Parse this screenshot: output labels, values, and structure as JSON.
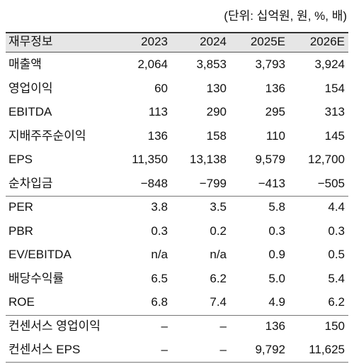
{
  "unit_note": "(단위: 십억원, 원, %, 배)",
  "table": {
    "header": [
      "재무정보",
      "2023",
      "2024",
      "2025E",
      "2026E"
    ],
    "groups": [
      [
        [
          "매출액",
          "2,064",
          "3,853",
          "3,793",
          "3,924"
        ],
        [
          "영업이익",
          "60",
          "130",
          "136",
          "154"
        ],
        [
          "EBITDA",
          "113",
          "290",
          "295",
          "313"
        ],
        [
          "지배주주순이익",
          "136",
          "158",
          "110",
          "145"
        ],
        [
          "EPS",
          "11,350",
          "13,138",
          "9,579",
          "12,700"
        ],
        [
          "순차입금",
          "−848",
          "−799",
          "−413",
          "−505"
        ]
      ],
      [
        [
          "PER",
          "3.8",
          "3.5",
          "5.8",
          "4.4"
        ],
        [
          "PBR",
          "0.3",
          "0.2",
          "0.3",
          "0.3"
        ],
        [
          "EV/EBITDA",
          "n/a",
          "n/a",
          "0.9",
          "0.5"
        ],
        [
          "배당수익률",
          "6.5",
          "6.2",
          "5.0",
          "5.4"
        ],
        [
          "ROE",
          "6.8",
          "7.4",
          "4.9",
          "6.2"
        ]
      ],
      [
        [
          "컨센서스 영업이익",
          "–",
          "–",
          "136",
          "150"
        ],
        [
          "컨센서스 EPS",
          "–",
          "–",
          "9,792",
          "11,625"
        ]
      ]
    ]
  }
}
